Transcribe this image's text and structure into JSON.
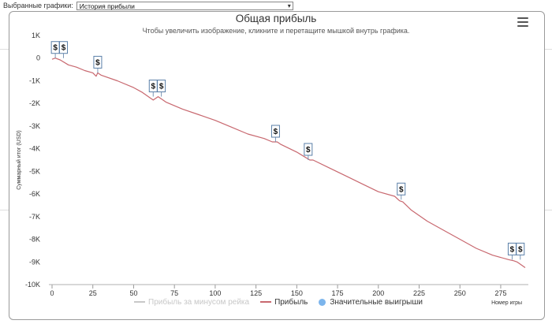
{
  "toolbar": {
    "label": "Выбранные графики:",
    "selected": "История прибыли"
  },
  "menu_icon": "hamburger-menu-icon",
  "colors": {
    "profit_line": "#c8686f",
    "rake_line": "#c8c8c8",
    "wins_marker": "#7cb5ec"
  },
  "chart_data": {
    "type": "line",
    "title": "Общая прибыль",
    "subtitle": "Чтобы увеличить изображение, кликните и перетащите мышкой внутрь графика.",
    "xlabel": "Номер игры",
    "ylabel": "Суммарный итог (USD)",
    "xlim": [
      0,
      290
    ],
    "ylim": [
      -10000,
      1000
    ],
    "x_ticks": [
      "0",
      "25",
      "50",
      "75",
      "100",
      "125",
      "150",
      "175",
      "200",
      "225",
      "250",
      "275"
    ],
    "y_ticks": [
      "1K",
      "0",
      "-1K",
      "-2K",
      "-3K",
      "-4K",
      "-5K",
      "-6K",
      "-7K",
      "-8K",
      "-9K",
      "-10K"
    ],
    "grid": false,
    "legend": "bottom-center",
    "series": [
      {
        "name": "Прибыль за минусом рейка",
        "visible": false,
        "x": [],
        "y": []
      },
      {
        "name": "Прибыль",
        "visible": true,
        "x": [
          0,
          2,
          5,
          10,
          15,
          20,
          25,
          27,
          28,
          30,
          40,
          50,
          55,
          60,
          62,
          65,
          70,
          80,
          90,
          100,
          110,
          120,
          130,
          135,
          138,
          140,
          150,
          158,
          160,
          170,
          180,
          190,
          200,
          210,
          213,
          215,
          220,
          230,
          240,
          250,
          260,
          270,
          280,
          283,
          285,
          290
        ],
        "y": [
          -50,
          0,
          -80,
          -300,
          -400,
          -550,
          -650,
          -800,
          -650,
          -750,
          -1000,
          -1300,
          -1500,
          -1750,
          -1850,
          -1700,
          -1950,
          -2250,
          -2500,
          -2750,
          -3050,
          -3350,
          -3550,
          -3700,
          -3700,
          -3800,
          -4150,
          -4500,
          -4500,
          -4850,
          -5200,
          -5550,
          -5900,
          -6100,
          -6300,
          -6350,
          -6700,
          -7200,
          -7600,
          -8000,
          -8400,
          -8700,
          -8900,
          -8950,
          -9000,
          -9250
        ]
      }
    ],
    "notable_wins": {
      "name": "Значительные выигрыши",
      "marker": "$",
      "x": [
        2,
        7,
        28,
        62,
        67,
        137,
        157,
        214,
        282,
        287
      ],
      "y": [
        0,
        0,
        -650,
        -1700,
        -1700,
        -3700,
        -4500,
        -6250,
        -8900,
        -8900
      ]
    }
  }
}
